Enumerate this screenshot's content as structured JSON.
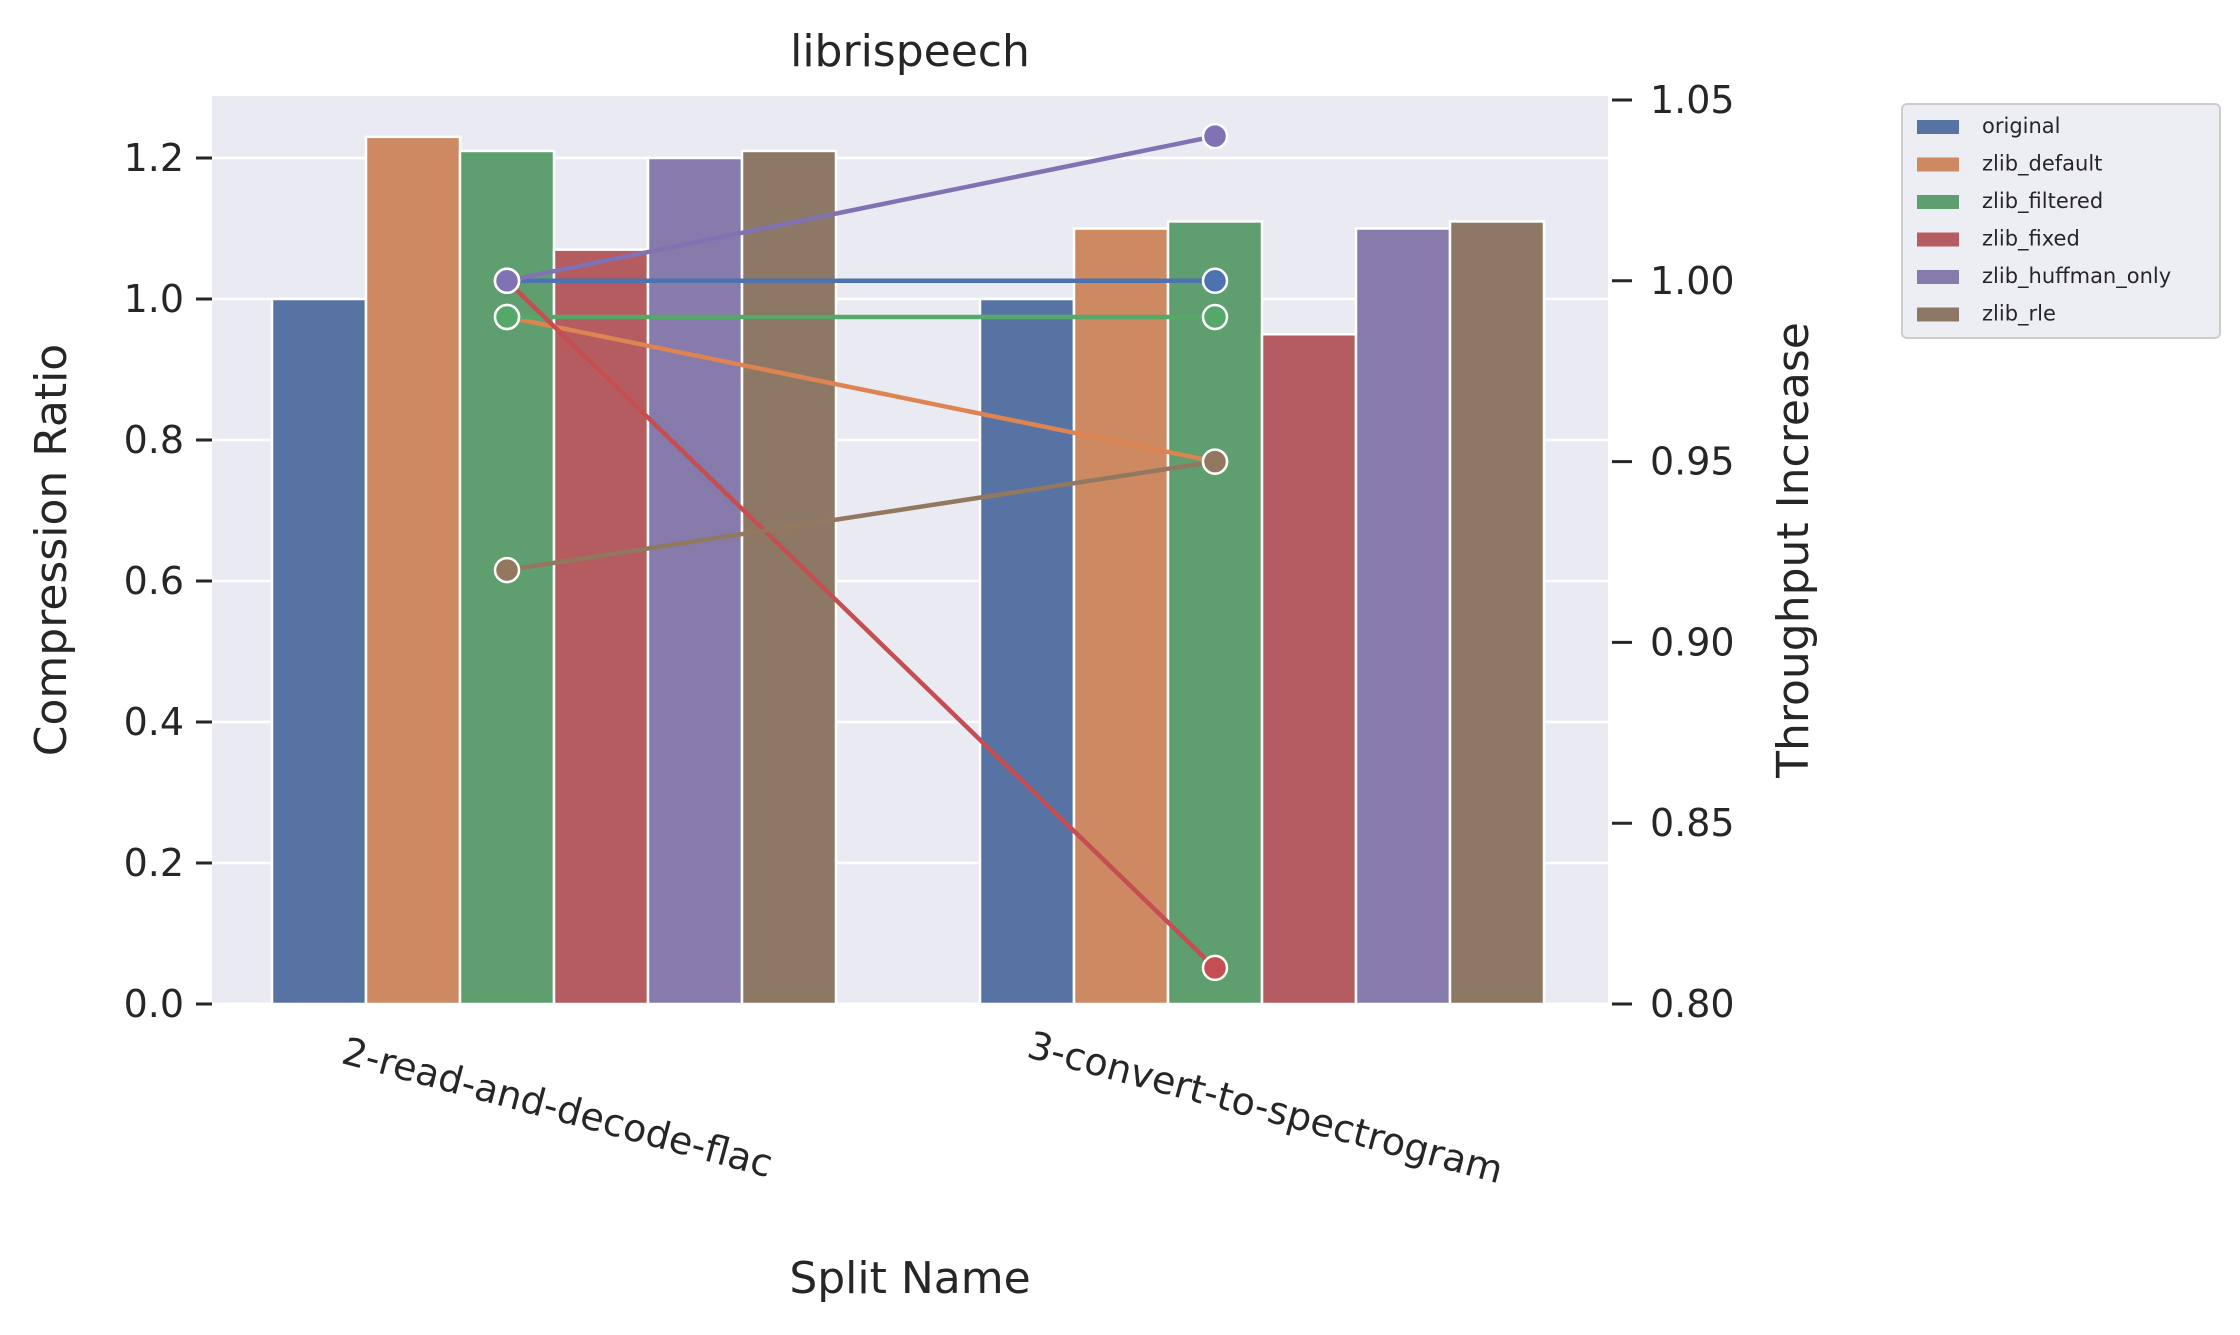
{
  "chart_data": {
    "type": "bar",
    "title": "librispeech",
    "xlabel": "Split Name",
    "ylabel": "Compression Ratio",
    "ylabel_right": "Throughput Increase",
    "categories": [
      "2-read-and-decode-flac",
      "3-convert-to-spectrogram"
    ],
    "ylim": [
      0,
      1.29
    ],
    "yticks": [
      0.0,
      0.2,
      0.4,
      0.6,
      0.8,
      1.0,
      1.2
    ],
    "yticks_labels": [
      "0.0",
      "0.2",
      "0.4",
      "0.6",
      "0.8",
      "1.0",
      "1.2"
    ],
    "ylim_right": [
      0.8,
      1.05
    ],
    "yticks_right": [
      0.8,
      0.85,
      0.9,
      0.95,
      1.0,
      1.05
    ],
    "yticks_right_labels": [
      "0.80",
      "0.85",
      "0.90",
      "0.95",
      "1.00",
      "1.05"
    ],
    "grid": true,
    "legend_position": "outside-right",
    "series": [
      {
        "name": "original",
        "color": "#5673a3",
        "values": [
          1.0,
          1.0
        ],
        "throughput": [
          1.0,
          1.0
        ]
      },
      {
        "name": "zlib_default",
        "color": "#cc8962",
        "values": [
          1.23,
          1.1
        ],
        "throughput": [
          0.99,
          0.95
        ]
      },
      {
        "name": "zlib_filtered",
        "color": "#5f9e6e",
        "values": [
          1.21,
          1.11
        ],
        "throughput": [
          0.99,
          0.99
        ]
      },
      {
        "name": "zlib_fixed",
        "color": "#b45c60",
        "values": [
          1.07,
          0.95
        ],
        "throughput": [
          1.0,
          0.81
        ]
      },
      {
        "name": "zlib_huffman_only",
        "color": "#867bab",
        "values": [
          1.2,
          1.1
        ],
        "throughput": [
          1.0,
          1.04
        ]
      },
      {
        "name": "zlib_rle",
        "color": "#8d7866",
        "values": [
          1.21,
          1.11
        ],
        "throughput": [
          0.92,
          0.95
        ]
      }
    ],
    "line_colors": [
      "#4c72b0",
      "#dd8452",
      "#55a868",
      "#c44e52",
      "#8172b3",
      "#937860"
    ]
  }
}
